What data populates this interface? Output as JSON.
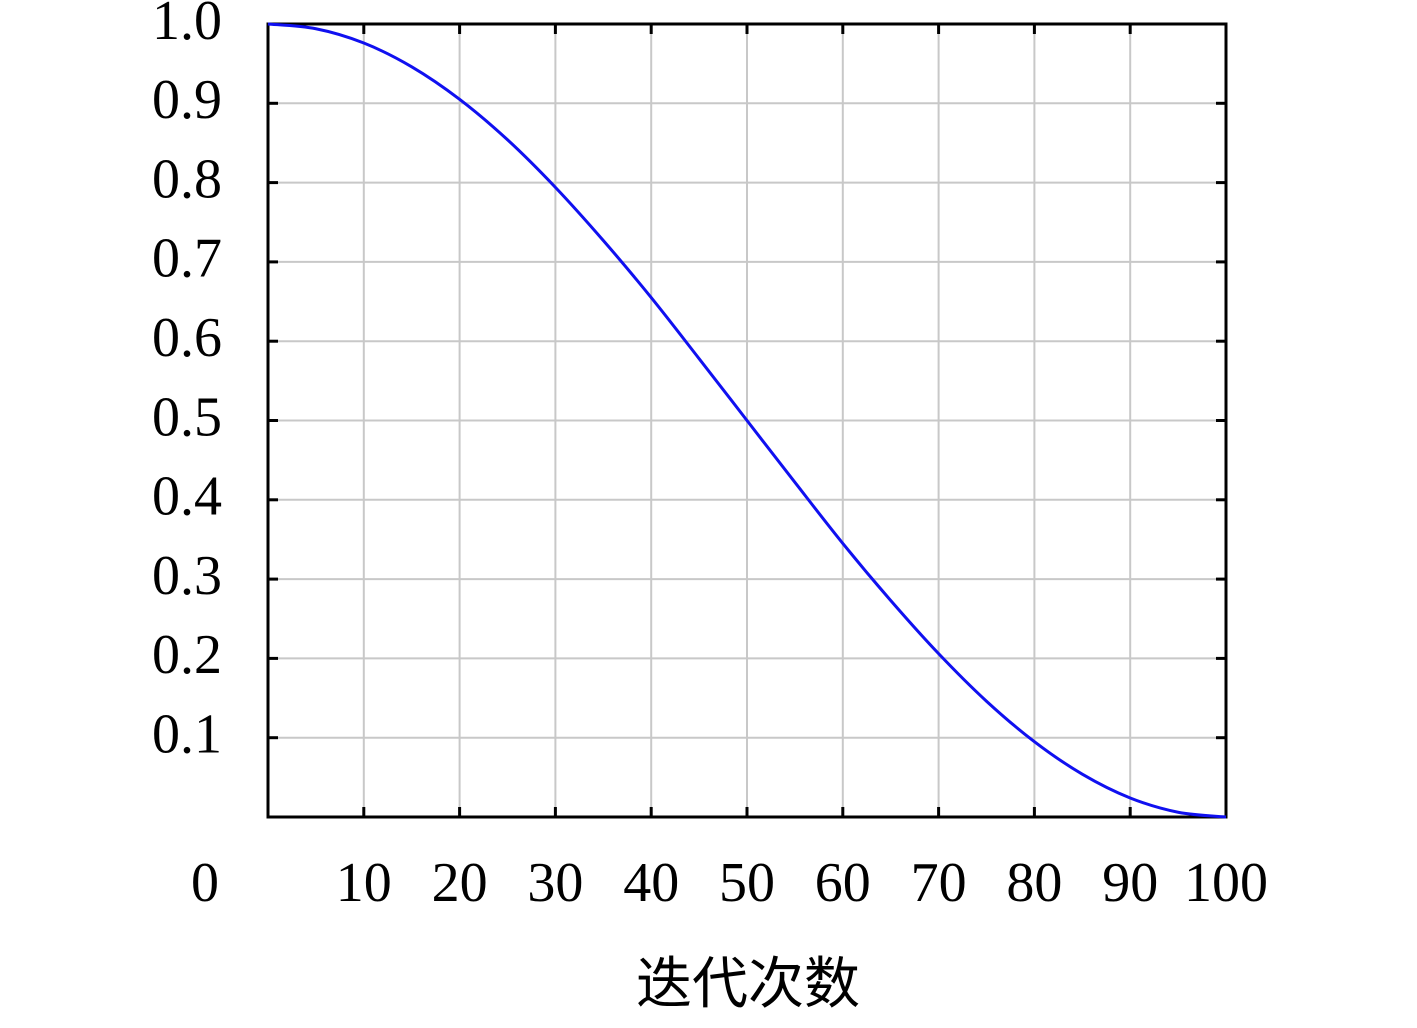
{
  "chart_data": {
    "type": "line",
    "x_label": "迭代次数",
    "x": [
      0,
      5,
      10,
      15,
      20,
      25,
      30,
      35,
      40,
      45,
      50,
      55,
      60,
      65,
      70,
      75,
      80,
      85,
      90,
      95,
      100
    ],
    "series": [
      {
        "color": "#1010f0",
        "values": [
          1,
          0.994,
          0.976,
          0.946,
          0.905,
          0.854,
          0.794,
          0.727,
          0.655,
          0.578,
          0.5,
          0.422,
          0.345,
          0.273,
          0.206,
          0.146,
          0.095,
          0.054,
          0.024,
          0.006,
          0
        ]
      }
    ],
    "xlim": [
      0,
      100
    ],
    "xticks": [
      0,
      10,
      20,
      30,
      40,
      50,
      60,
      70,
      80,
      90,
      100
    ],
    "ylim": [
      0,
      1
    ],
    "yticks": [
      0.1,
      0.2,
      0.3,
      0.4,
      0.5,
      0.6,
      0.7,
      0.8,
      0.9,
      {
        "value": 1,
        "label": "1.0"
      }
    ],
    "grid": true
  }
}
